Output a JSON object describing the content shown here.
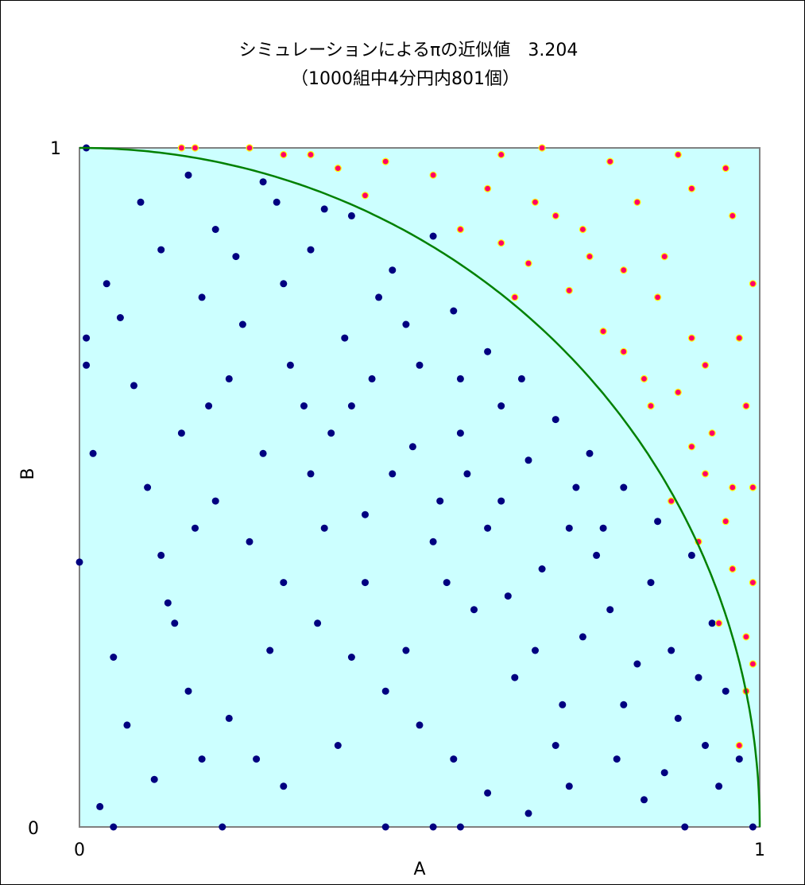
{
  "chart_data": {
    "type": "scatter",
    "title": "シミュレーションによるπの近似値　3.204",
    "subtitle": "（1000組中4分円内801個）",
    "xlabel": "A",
    "ylabel": "B",
    "xlim": [
      0,
      1
    ],
    "ylim": [
      0,
      1
    ],
    "x_ticks": [
      "0",
      "1"
    ],
    "y_ticks": [
      "0",
      "1"
    ],
    "grid": false,
    "legend": "none",
    "plot_background": "#ccffff",
    "plot_border_color": "#808080",
    "curve": {
      "equation": "x^2 + y^2 = 1",
      "color": "#008000"
    },
    "total_pairs": 1000,
    "inside_count": 801,
    "pi_estimate": 3.204,
    "series": [
      {
        "color": "#000080",
        "points": [
          [
            0.01,
            1.0
          ],
          [
            0.16,
            0.96
          ],
          [
            0.27,
            0.95
          ],
          [
            0.36,
            0.91
          ],
          [
            0.52,
            0.87
          ],
          [
            0.01,
            0.72
          ],
          [
            0.01,
            0.68
          ],
          [
            0.0,
            0.39
          ],
          [
            0.03,
            0.03
          ],
          [
            0.05,
            0.0
          ],
          [
            0.21,
            0.0
          ],
          [
            0.45,
            0.0
          ],
          [
            0.52,
            0.0
          ],
          [
            0.56,
            0.0
          ],
          [
            0.89,
            0.0
          ],
          [
            0.99,
            0.0
          ],
          [
            0.12,
            0.85
          ],
          [
            0.18,
            0.78
          ],
          [
            0.22,
            0.66
          ],
          [
            0.27,
            0.55
          ],
          [
            0.33,
            0.62
          ],
          [
            0.39,
            0.72
          ],
          [
            0.46,
            0.82
          ],
          [
            0.55,
            0.76
          ],
          [
            0.6,
            0.7
          ],
          [
            0.65,
            0.66
          ],
          [
            0.7,
            0.6
          ],
          [
            0.75,
            0.55
          ],
          [
            0.8,
            0.5
          ],
          [
            0.85,
            0.45
          ],
          [
            0.9,
            0.4
          ],
          [
            0.93,
            0.3
          ],
          [
            0.95,
            0.2
          ],
          [
            0.97,
            0.1
          ],
          [
            0.15,
            0.58
          ],
          [
            0.2,
            0.48
          ],
          [
            0.25,
            0.42
          ],
          [
            0.3,
            0.36
          ],
          [
            0.35,
            0.3
          ],
          [
            0.4,
            0.25
          ],
          [
            0.45,
            0.2
          ],
          [
            0.5,
            0.15
          ],
          [
            0.55,
            0.1
          ],
          [
            0.6,
            0.05
          ],
          [
            0.1,
            0.5
          ],
          [
            0.12,
            0.4
          ],
          [
            0.14,
            0.3
          ],
          [
            0.16,
            0.2
          ],
          [
            0.18,
            0.1
          ],
          [
            0.08,
            0.65
          ],
          [
            0.06,
            0.75
          ],
          [
            0.04,
            0.8
          ],
          [
            0.3,
            0.8
          ],
          [
            0.34,
            0.85
          ],
          [
            0.4,
            0.9
          ],
          [
            0.44,
            0.78
          ],
          [
            0.5,
            0.68
          ],
          [
            0.56,
            0.58
          ],
          [
            0.62,
            0.48
          ],
          [
            0.68,
            0.38
          ],
          [
            0.74,
            0.28
          ],
          [
            0.8,
            0.18
          ],
          [
            0.86,
            0.08
          ],
          [
            0.7,
            0.12
          ],
          [
            0.64,
            0.22
          ],
          [
            0.58,
            0.32
          ],
          [
            0.52,
            0.42
          ],
          [
            0.46,
            0.52
          ],
          [
            0.4,
            0.62
          ],
          [
            0.34,
            0.52
          ],
          [
            0.28,
            0.26
          ],
          [
            0.22,
            0.16
          ],
          [
            0.66,
            0.02
          ],
          [
            0.72,
            0.06
          ],
          [
            0.78,
            0.32
          ],
          [
            0.82,
            0.24
          ],
          [
            0.88,
            0.16
          ],
          [
            0.91,
            0.22
          ],
          [
            0.09,
            0.92
          ],
          [
            0.2,
            0.88
          ],
          [
            0.24,
            0.74
          ],
          [
            0.36,
            0.44
          ],
          [
            0.42,
            0.36
          ],
          [
            0.48,
            0.26
          ],
          [
            0.54,
            0.36
          ],
          [
            0.6,
            0.44
          ],
          [
            0.66,
            0.54
          ],
          [
            0.72,
            0.44
          ],
          [
            0.76,
            0.4
          ],
          [
            0.84,
            0.36
          ],
          [
            0.62,
            0.62
          ],
          [
            0.56,
            0.66
          ],
          [
            0.48,
            0.74
          ],
          [
            0.42,
            0.46
          ],
          [
            0.38,
            0.12
          ],
          [
            0.3,
            0.06
          ],
          [
            0.26,
            0.1
          ],
          [
            0.02,
            0.55
          ],
          [
            0.05,
            0.25
          ],
          [
            0.07,
            0.15
          ],
          [
            0.11,
            0.07
          ],
          [
            0.13,
            0.33
          ],
          [
            0.17,
            0.44
          ],
          [
            0.19,
            0.62
          ],
          [
            0.23,
            0.84
          ],
          [
            0.29,
            0.92
          ],
          [
            0.31,
            0.68
          ],
          [
            0.37,
            0.58
          ],
          [
            0.43,
            0.66
          ],
          [
            0.49,
            0.56
          ],
          [
            0.53,
            0.48
          ],
          [
            0.57,
            0.52
          ],
          [
            0.63,
            0.34
          ],
          [
            0.67,
            0.26
          ],
          [
            0.71,
            0.18
          ],
          [
            0.73,
            0.5
          ],
          [
            0.77,
            0.44
          ],
          [
            0.79,
            0.1
          ],
          [
            0.83,
            0.04
          ],
          [
            0.87,
            0.26
          ],
          [
            0.92,
            0.12
          ],
          [
            0.94,
            0.06
          ]
        ]
      },
      {
        "color": "#ff0066",
        "points": [
          [
            0.15,
            1.0
          ],
          [
            0.17,
            1.0
          ],
          [
            0.25,
            1.0
          ],
          [
            0.34,
            0.99
          ],
          [
            0.45,
            0.98
          ],
          [
            0.62,
            0.99
          ],
          [
            0.68,
            1.0
          ],
          [
            0.78,
            0.98
          ],
          [
            0.88,
            0.99
          ],
          [
            0.95,
            0.97
          ],
          [
            0.9,
            0.94
          ],
          [
            0.82,
            0.92
          ],
          [
            0.74,
            0.88
          ],
          [
            0.66,
            0.83
          ],
          [
            0.96,
            0.9
          ],
          [
            0.99,
            0.8
          ],
          [
            0.85,
            0.78
          ],
          [
            0.77,
            0.73
          ],
          [
            0.92,
            0.68
          ],
          [
            0.98,
            0.62
          ],
          [
            0.9,
            0.56
          ],
          [
            0.84,
            0.62
          ],
          [
            0.96,
            0.5
          ],
          [
            0.91,
            0.42
          ],
          [
            0.99,
            0.36
          ],
          [
            0.94,
            0.3
          ],
          [
            0.98,
            0.2
          ],
          [
            0.97,
            0.12
          ],
          [
            0.86,
            0.84
          ],
          [
            0.7,
            0.9
          ],
          [
            0.6,
            0.94
          ],
          [
            0.56,
            0.88
          ],
          [
            0.64,
            0.78
          ],
          [
            0.8,
            0.7
          ],
          [
            0.88,
            0.64
          ],
          [
            0.93,
            0.58
          ],
          [
            0.97,
            0.72
          ],
          [
            0.95,
            0.45
          ],
          [
            0.92,
            0.52
          ],
          [
            0.87,
            0.48
          ],
          [
            0.99,
            0.24
          ],
          [
            0.98,
            0.28
          ],
          [
            0.8,
            0.82
          ],
          [
            0.72,
            0.79
          ],
          [
            0.62,
            0.86
          ],
          [
            0.52,
            0.96
          ],
          [
            0.42,
            0.93
          ],
          [
            0.38,
            0.97
          ],
          [
            0.3,
            0.99
          ],
          [
            0.96,
            0.38
          ],
          [
            0.99,
            0.5
          ],
          [
            0.9,
            0.72
          ],
          [
            0.83,
            0.66
          ],
          [
            0.75,
            0.84
          ],
          [
            0.67,
            0.92
          ]
        ]
      }
    ]
  }
}
